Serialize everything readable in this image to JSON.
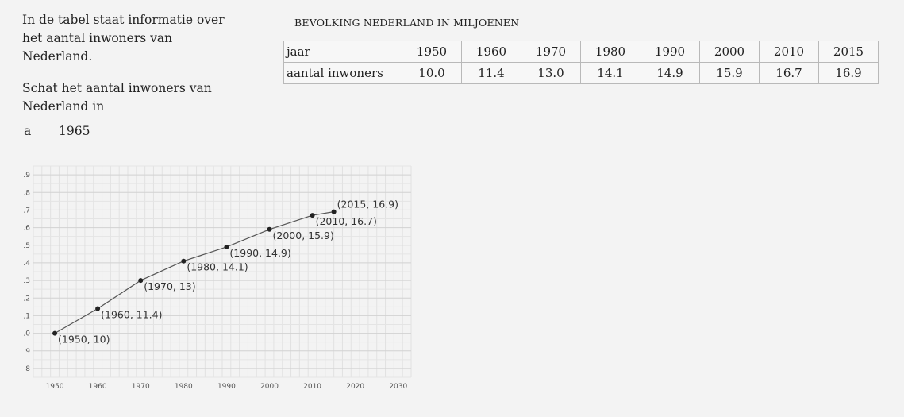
{
  "intro": {
    "line1": "In de tabel staat informatie over het aantal inwoners van Nederland.",
    "question": "Schat het aantal inwoners van Nederland in",
    "item_letter": "a",
    "item_value": "1965"
  },
  "table": {
    "title": "BEVOLKING NEDERLAND IN MILJOENEN",
    "row_header_year": "jaar",
    "row_header_pop": "aantal inwoners",
    "years": [
      "1950",
      "1960",
      "1970",
      "1980",
      "1990",
      "2000",
      "2010",
      "2015"
    ],
    "values": [
      "10.0",
      "11.4",
      "13.0",
      "14.1",
      "14.9",
      "15.9",
      "16.7",
      "16.9"
    ]
  },
  "chart_data": {
    "type": "line",
    "title": "",
    "xlabel": "",
    "ylabel": "",
    "x": [
      1950,
      1960,
      1970,
      1980,
      1990,
      2000,
      2010,
      2015
    ],
    "y": [
      10,
      11.4,
      13,
      14.1,
      14.9,
      15.9,
      16.7,
      16.9
    ],
    "point_labels": [
      "(1950, 10)",
      "(1960, 11.4)",
      "(1970, 13)",
      "(1980, 14.1)",
      "(1990, 14.9)",
      "(2000, 15.9)",
      "(2010, 16.7)",
      "(2015, 16.9)"
    ],
    "xlim": [
      1945,
      2033
    ],
    "ylim": [
      7.5,
      19.5
    ],
    "xticks": [
      1950,
      1960,
      1970,
      1980,
      1990,
      2000,
      2010,
      2020,
      2030
    ],
    "yticks": [
      8,
      9,
      10,
      11,
      12,
      13,
      14,
      15,
      16,
      17,
      18,
      19
    ],
    "grid": true,
    "line_color": "#555555",
    "point_color": "#222222"
  }
}
